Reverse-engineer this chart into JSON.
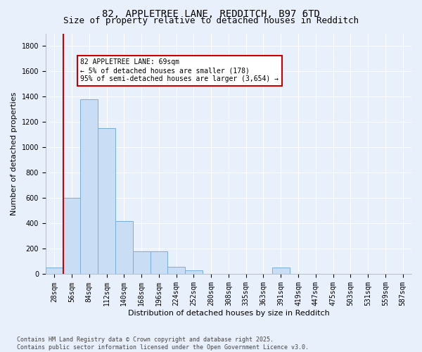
{
  "title1": "82, APPLETREE LANE, REDDITCH, B97 6TD",
  "title2": "Size of property relative to detached houses in Redditch",
  "xlabel": "Distribution of detached houses by size in Redditch",
  "ylabel": "Number of detached properties",
  "bin_labels": [
    "28sqm",
    "56sqm",
    "84sqm",
    "112sqm",
    "140sqm",
    "168sqm",
    "196sqm",
    "224sqm",
    "252sqm",
    "280sqm",
    "308sqm",
    "335sqm",
    "363sqm",
    "391sqm",
    "419sqm",
    "447sqm",
    "475sqm",
    "503sqm",
    "531sqm",
    "559sqm",
    "587sqm"
  ],
  "bar_values": [
    50,
    600,
    1380,
    1150,
    420,
    180,
    180,
    60,
    30,
    0,
    0,
    0,
    0,
    50,
    0,
    0,
    0,
    0,
    0,
    0,
    0
  ],
  "bar_color": "#c9ddf5",
  "bar_edge_color": "#7aaedd",
  "vline_color": "#cc0000",
  "annotation_text": "82 APPLETREE LANE: 69sqm\n← 5% of detached houses are smaller (178)\n95% of semi-detached houses are larger (3,654) →",
  "annotation_box_color": "#ffffff",
  "annotation_box_edge": "#cc0000",
  "ylim": [
    0,
    1900
  ],
  "yticks": [
    0,
    200,
    400,
    600,
    800,
    1000,
    1200,
    1400,
    1600,
    1800
  ],
  "footer_text": "Contains HM Land Registry data © Crown copyright and database right 2025.\nContains public sector information licensed under the Open Government Licence v3.0.",
  "bg_color": "#e8f0fc",
  "plot_bg_color": "#e8f0fc",
  "grid_color": "#ffffff",
  "title_fontsize": 10,
  "subtitle_fontsize": 9,
  "tick_fontsize": 7,
  "ylabel_fontsize": 8,
  "xlabel_fontsize": 8,
  "footer_fontsize": 6,
  "annot_fontsize": 7
}
